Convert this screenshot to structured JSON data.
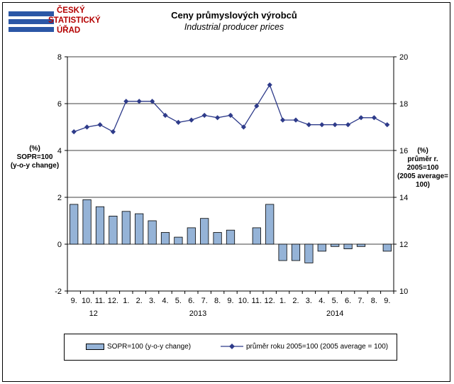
{
  "logo": {
    "line1": "ČESKÝ",
    "line2": "STATISTICKÝ",
    "line3": "ÚŘAD",
    "text_color": "#b40000",
    "bar_color": "#2b57a6"
  },
  "chart_data": {
    "type": "bar+line",
    "title": "Ceny průmyslových výrobců",
    "subtitle": "Industrial producer prices",
    "categories": [
      "9.",
      "10.",
      "11.",
      "12.",
      "1.",
      "2.",
      "3.",
      "4.",
      "5.",
      "6.",
      "7.",
      "8.",
      "9.",
      "10.",
      "11.",
      "12.",
      "1.",
      "2.",
      "3.",
      "4.",
      "5.",
      "6.",
      "7.",
      "8.",
      "9."
    ],
    "year_labels": [
      {
        "label": "12",
        "from_index": 0,
        "to_index": 3
      },
      {
        "label": "2013",
        "from_index": 4,
        "to_index": 15
      },
      {
        "label": "2014",
        "from_index": 16,
        "to_index": 24
      }
    ],
    "left_axis": {
      "label_lines": [
        "(%)",
        "SOPR=100",
        "(y-o-y change)"
      ],
      "ylim": [
        -2,
        8
      ],
      "ticks": [
        -2,
        0,
        2,
        4,
        6,
        8
      ]
    },
    "right_axis": {
      "label_lines": [
        "(%)",
        "průměr r.",
        "2005=100",
        "(2005 average=",
        "100)"
      ],
      "ylim": [
        10,
        20
      ],
      "ticks": [
        10,
        12,
        14,
        16,
        18,
        20
      ]
    },
    "series": [
      {
        "name": "SOPR=100 (y-o-y change)",
        "kind": "bar",
        "axis": "left",
        "color": "#95b3d7",
        "values": [
          1.7,
          1.9,
          1.6,
          1.2,
          1.4,
          1.3,
          1.0,
          0.5,
          0.3,
          0.7,
          1.1,
          0.5,
          0.6,
          0.0,
          0.7,
          1.7,
          -0.7,
          -0.7,
          -0.8,
          -0.3,
          -0.1,
          -0.2,
          -0.1,
          0.0,
          -0.3
        ]
      },
      {
        "name": "průměr roku 2005=100  (2005 average = 100)",
        "kind": "line",
        "axis": "right",
        "color": "#2e3b8a",
        "values": [
          16.8,
          17.0,
          17.1,
          16.8,
          18.1,
          18.1,
          18.1,
          17.5,
          17.2,
          17.3,
          17.5,
          17.4,
          17.5,
          17.0,
          17.9,
          18.8,
          17.3,
          17.3,
          17.1,
          17.1,
          17.1,
          17.1,
          17.4,
          17.4,
          17.1
        ]
      }
    ],
    "grid": "horizontal",
    "legend_position": "bottom"
  }
}
